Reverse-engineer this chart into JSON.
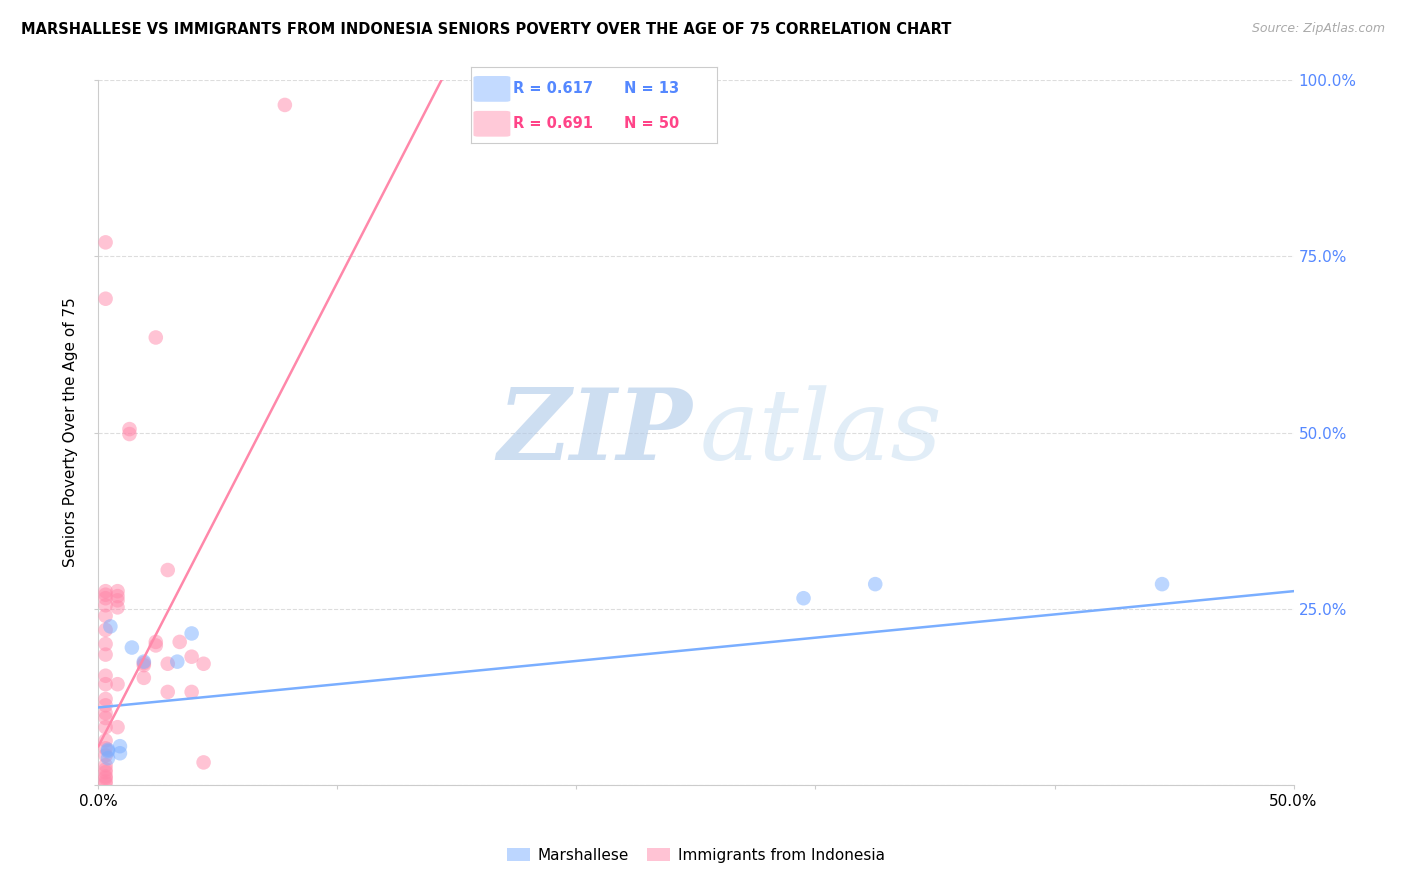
{
  "title": "MARSHALLESE VS IMMIGRANTS FROM INDONESIA SENIORS POVERTY OVER THE AGE OF 75 CORRELATION CHART",
  "source": "Source: ZipAtlas.com",
  "ylabel": "Seniors Poverty Over the Age of 75",
  "xlim": [
    0.0,
    0.5
  ],
  "ylim": [
    0.0,
    1.0
  ],
  "xticks": [
    0.0,
    0.1,
    0.2,
    0.3,
    0.4,
    0.5
  ],
  "xticklabels_show": [
    "0.0%",
    "",
    "",
    "",
    "",
    "50.0%"
  ],
  "yticks_right": [
    0.0,
    0.25,
    0.5,
    0.75,
    1.0
  ],
  "yticklabels_right": [
    "",
    "25.0%",
    "50.0%",
    "75.0%",
    "100.0%"
  ],
  "grid_color": "#dddddd",
  "background": "#ffffff",
  "blue_color": "#7aaeff",
  "pink_color": "#ff88aa",
  "blue_R": 0.617,
  "blue_N": 13,
  "pink_R": 0.691,
  "pink_N": 50,
  "blue_label": "Marshallese",
  "pink_label": "Immigrants from Indonesia",
  "blue_scatter_x": [
    0.005,
    0.014,
    0.019,
    0.033,
    0.039,
    0.009,
    0.009,
    0.004,
    0.004,
    0.295,
    0.325,
    0.445,
    0.004
  ],
  "blue_scatter_y": [
    0.225,
    0.195,
    0.175,
    0.175,
    0.215,
    0.045,
    0.055,
    0.05,
    0.048,
    0.265,
    0.285,
    0.285,
    0.038
  ],
  "pink_scatter_x": [
    0.003,
    0.003,
    0.003,
    0.003,
    0.003,
    0.003,
    0.003,
    0.003,
    0.003,
    0.003,
    0.003,
    0.003,
    0.003,
    0.003,
    0.003,
    0.003,
    0.003,
    0.003,
    0.003,
    0.003,
    0.008,
    0.008,
    0.008,
    0.008,
    0.008,
    0.008,
    0.013,
    0.013,
    0.019,
    0.019,
    0.019,
    0.024,
    0.024,
    0.024,
    0.029,
    0.029,
    0.029,
    0.034,
    0.039,
    0.039,
    0.044,
    0.044,
    0.003,
    0.003,
    0.003,
    0.003,
    0.003,
    0.003,
    0.003,
    0.078
  ],
  "pink_scatter_y": [
    0.77,
    0.69,
    0.275,
    0.27,
    0.265,
    0.255,
    0.24,
    0.22,
    0.2,
    0.185,
    0.155,
    0.143,
    0.122,
    0.113,
    0.102,
    0.095,
    0.082,
    0.063,
    0.052,
    0.042,
    0.275,
    0.268,
    0.262,
    0.252,
    0.143,
    0.082,
    0.505,
    0.498,
    0.173,
    0.17,
    0.152,
    0.635,
    0.203,
    0.198,
    0.305,
    0.172,
    0.132,
    0.203,
    0.182,
    0.132,
    0.172,
    0.032,
    0.028,
    0.022,
    0.018,
    0.012,
    0.01,
    0.005,
    0.002,
    0.965
  ],
  "blue_line_x": [
    0.0,
    0.5
  ],
  "blue_line_y": [
    0.11,
    0.275
  ],
  "pink_line_x": [
    0.0,
    0.145
  ],
  "pink_line_y": [
    0.055,
    1.01
  ],
  "legend_R_color_blue": "#5588ff",
  "legend_R_color_pink": "#ff4488",
  "legend_N_color_blue": "#5588ff",
  "legend_N_color_pink": "#ff4488",
  "figsize": [
    14.06,
    8.92
  ],
  "dpi": 100
}
